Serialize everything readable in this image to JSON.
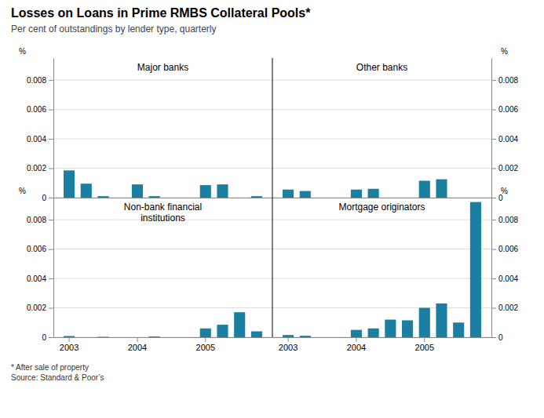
{
  "title": "Losses on Loans in Prime RMBS Collateral Pools*",
  "subtitle": "Per cent of outstandings by lender type, quarterly",
  "annotations": [
    "* After sale of property\nSource: Standard & Poor’s"
  ],
  "chart_data": [
    {
      "type": "bar",
      "title": "Major banks",
      "categories": [
        "2003",
        null,
        null,
        null,
        "2004",
        null,
        null,
        null,
        "2005",
        null,
        null,
        null
      ],
      "values": [
        0.00185,
        0.00095,
        0.0001,
        0.0,
        0.0009,
        0.0001,
        0.0,
        0.0,
        0.00085,
        0.0009,
        0.0,
        0.0001
      ],
      "color": "#1a7fa0",
      "ylabel": "%",
      "ylim": [
        0,
        0.0095
      ],
      "yticks": [
        0,
        0.002,
        0.004,
        0.006,
        0.008
      ],
      "grid": true,
      "tick_labels": "y"
    },
    {
      "type": "bar",
      "title": "Other banks",
      "categories": [
        "2003",
        null,
        null,
        null,
        "2004",
        null,
        null,
        null,
        "2005",
        null,
        null,
        null
      ],
      "values": [
        0.00055,
        0.00045,
        0.0,
        0.0,
        0.00055,
        0.0006,
        0.0,
        0.0,
        0.00115,
        0.00125,
        0.0,
        0.0
      ],
      "color": "#1a7fa0",
      "ylabel": "%",
      "ylim": [
        0,
        0.0095
      ],
      "yticks": [
        0,
        0.002,
        0.004,
        0.006,
        0.008
      ],
      "grid": true,
      "tick_labels": "y"
    },
    {
      "type": "bar",
      "title": "Non-bank financial\ninstitutions",
      "categories": [
        "2003",
        null,
        null,
        null,
        "2004",
        null,
        null,
        null,
        "2005",
        null,
        null,
        null
      ],
      "values": [
        8e-05,
        0.0,
        3e-05,
        0.0,
        0.0,
        5e-05,
        0.0,
        0.0,
        0.0006,
        0.00085,
        0.0017,
        0.0004
      ],
      "color": "#1a7fa0",
      "ylabel": "%",
      "ylim": [
        0,
        0.0095
      ],
      "yticks": [
        0,
        0.002,
        0.004,
        0.006,
        0.008
      ],
      "grid": true
    },
    {
      "type": "bar",
      "title": "Mortgage originators",
      "categories": [
        "2003",
        null,
        null,
        null,
        "2004",
        null,
        null,
        null,
        "2005",
        null,
        null,
        null
      ],
      "values": [
        0.00015,
        0.0001,
        0.0,
        0.0,
        0.0005,
        0.0006,
        0.0012,
        0.00115,
        0.002,
        0.0023,
        0.001,
        0.0092
      ],
      "color": "#1a7fa0",
      "ylabel": "%",
      "ylim": [
        0,
        0.0095
      ],
      "yticks": [
        0,
        0.002,
        0.004,
        0.006,
        0.008
      ],
      "grid": true
    }
  ]
}
